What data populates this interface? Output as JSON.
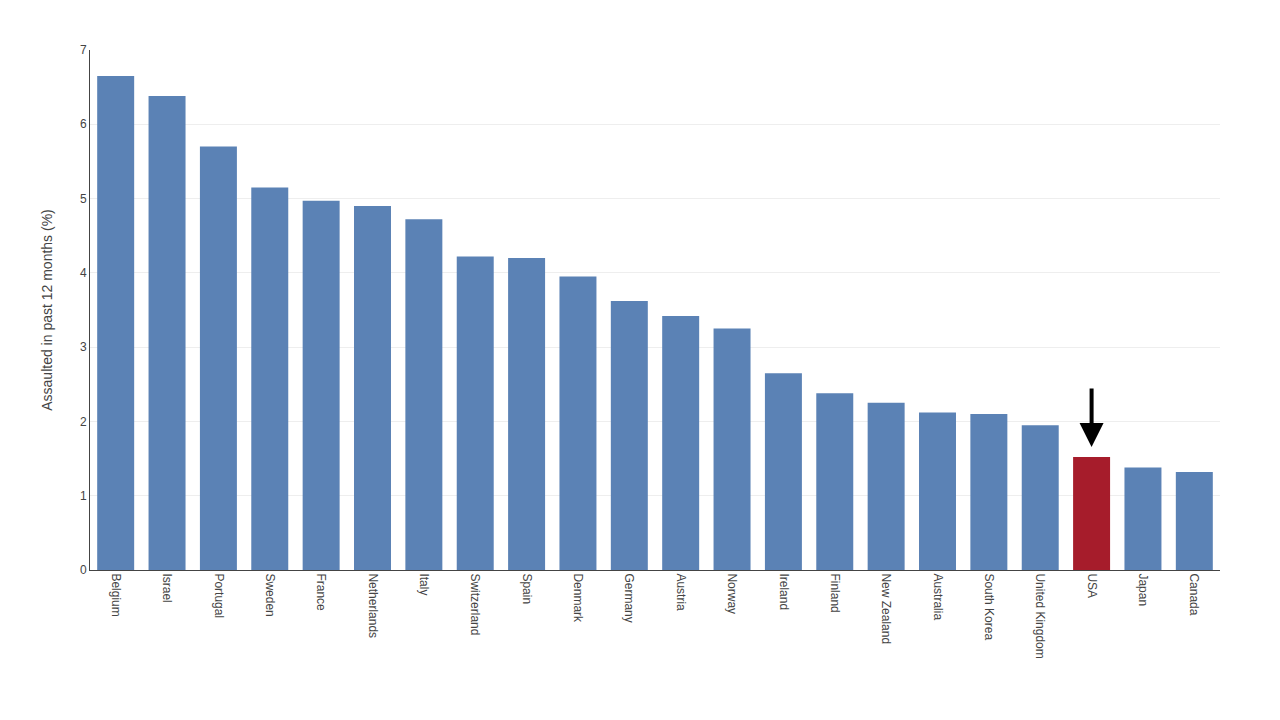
{
  "chart_data": {
    "type": "bar",
    "categories": [
      "Belgium",
      "Israel",
      "Portugal",
      "Sweden",
      "France",
      "Netherlands",
      "Italy",
      "Switzerland",
      "Spain",
      "Denmark",
      "Germany",
      "Austria",
      "Norway",
      "Ireland",
      "Finland",
      "New Zealand",
      "Australia",
      "South Korea",
      "United Kingdom",
      "USA",
      "Japan",
      "Canada"
    ],
    "values": [
      6.65,
      6.38,
      5.7,
      5.15,
      4.97,
      4.9,
      4.72,
      4.22,
      4.2,
      3.95,
      3.62,
      3.42,
      3.25,
      2.65,
      2.38,
      2.25,
      2.12,
      2.1,
      1.95,
      1.52,
      1.38,
      1.32
    ],
    "colors": [
      "#5b82b5",
      "#5b82b5",
      "#5b82b5",
      "#5b82b5",
      "#5b82b5",
      "#5b82b5",
      "#5b82b5",
      "#5b82b5",
      "#5b82b5",
      "#5b82b5",
      "#5b82b5",
      "#5b82b5",
      "#5b82b5",
      "#5b82b5",
      "#5b82b5",
      "#5b82b5",
      "#5b82b5",
      "#5b82b5",
      "#5b82b5",
      "#a61c2b",
      "#5b82b5",
      "#5b82b5"
    ],
    "ylabel": "Assaulted in past 12 months (%)",
    "ylim": [
      0,
      7
    ],
    "yticks": [
      0,
      1,
      2,
      3,
      4,
      5,
      6,
      7
    ],
    "grid": true
  }
}
